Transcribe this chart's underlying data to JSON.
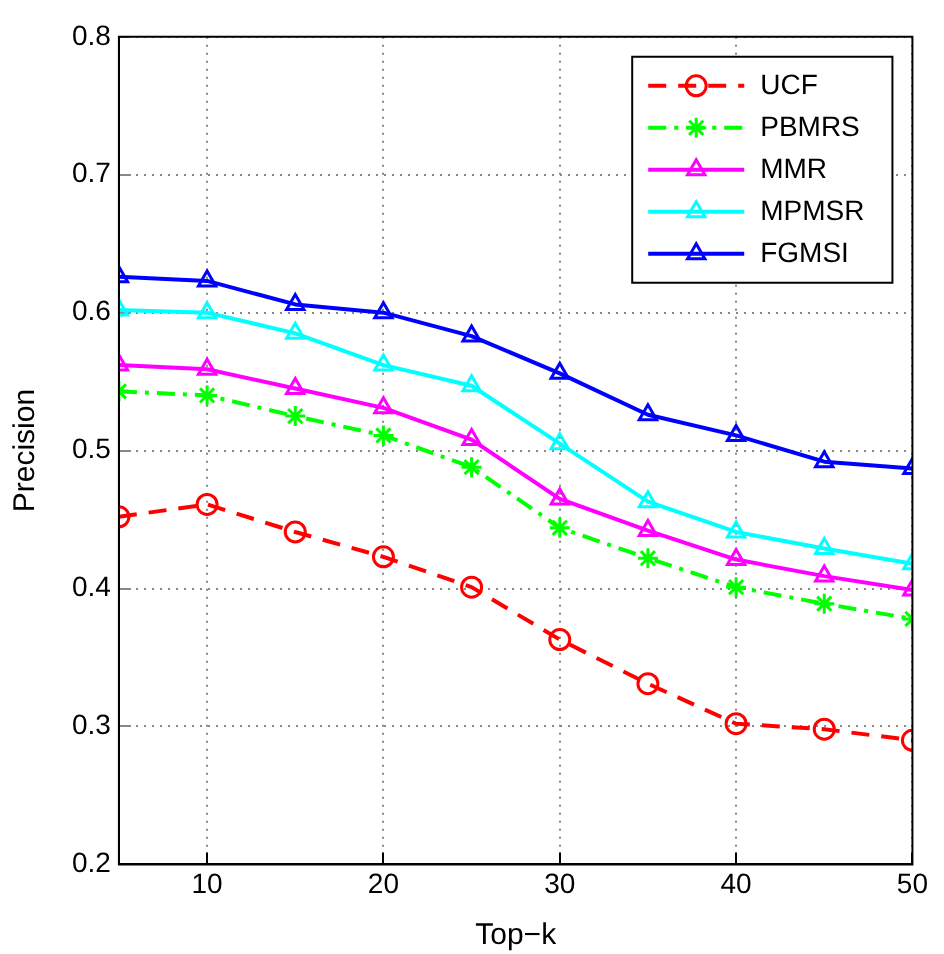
{
  "chart_data": {
    "type": "line",
    "xlabel": "Top−k",
    "ylabel": "Precision",
    "x": [
      5,
      10,
      15,
      20,
      25,
      30,
      35,
      40,
      45,
      50
    ],
    "xlim": [
      5,
      50
    ],
    "xticks": [
      10,
      20,
      30,
      40,
      50
    ],
    "ylim": [
      0.2,
      0.8
    ],
    "yticks": [
      0.2,
      0.3,
      0.4,
      0.5,
      0.6,
      0.7,
      0.8
    ],
    "grid": true,
    "legend": "top right",
    "series": [
      {
        "name": "UCF",
        "color": "#ff0000",
        "marker": "circle",
        "line_style": "dashed",
        "values": [
          0.452,
          0.461,
          0.441,
          0.423,
          0.401,
          0.363,
          0.331,
          0.302,
          0.298,
          0.29
        ]
      },
      {
        "name": "PBMRS",
        "color": "#00ff00",
        "marker": "cross",
        "line_style": "dashdot",
        "values": [
          0.543,
          0.54,
          0.525,
          0.511,
          0.488,
          0.444,
          0.422,
          0.401,
          0.389,
          0.378
        ]
      },
      {
        "name": "MMR",
        "color": "#ff00ff",
        "marker": "triangle",
        "line_style": "solid",
        "values": [
          0.562,
          0.559,
          0.545,
          0.531,
          0.508,
          0.465,
          0.442,
          0.421,
          0.409,
          0.399
        ]
      },
      {
        "name": "MPMSR",
        "color": "#00ffff",
        "marker": "triangle",
        "line_style": "solid",
        "values": [
          0.602,
          0.6,
          0.585,
          0.562,
          0.547,
          0.505,
          0.463,
          0.441,
          0.429,
          0.418
        ]
      },
      {
        "name": "FGMSI",
        "color": "#0000ff",
        "marker": "triangle",
        "line_style": "solid",
        "values": [
          0.626,
          0.623,
          0.606,
          0.6,
          0.583,
          0.556,
          0.526,
          0.511,
          0.492,
          0.487
        ]
      }
    ]
  }
}
